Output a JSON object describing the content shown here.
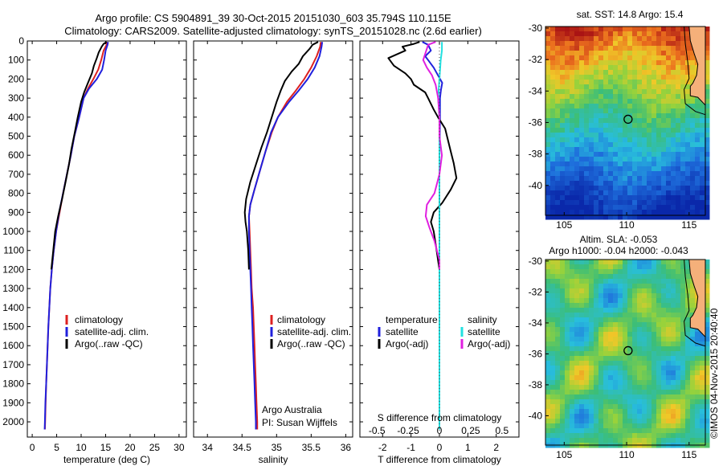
{
  "header": {
    "line1": "Argo profile: CS 5904891_39 30-Oct-2015 20151030_603 35.794S 110.115E",
    "line2": "Climatology: CARS2009. Satellite-adjusted climatology: synTS_20151028.nc (2.6d earlier)"
  },
  "colors": {
    "climatology": "#dd2020",
    "satellite": "#2020dd",
    "argo": "#000000",
    "sal_satellite": "#22e0e0",
    "sal_argo": "#e020e0",
    "land": "#f5b07a"
  },
  "chart_data": [
    {
      "type": "line",
      "name": "temperature-profile",
      "xlabel": "temperature (deg C)",
      "ylabel": "",
      "xlim": [
        -1,
        31.5
      ],
      "ylim": [
        2080,
        0
      ],
      "xticks": [
        0,
        5,
        10,
        15,
        20,
        25,
        30
      ],
      "yticks": [
        0,
        100,
        200,
        300,
        400,
        500,
        600,
        700,
        800,
        900,
        1000,
        1100,
        1200,
        1300,
        1400,
        1500,
        1600,
        1700,
        1800,
        1900,
        2000
      ],
      "legend": [
        "climatology",
        "satellite-adj. clim.",
        "Argo(..raw -QC)"
      ],
      "series": [
        {
          "name": "climatology",
          "points": [
            [
              15.3,
              5
            ],
            [
              15.2,
              20
            ],
            [
              14.6,
              50
            ],
            [
              14.1,
              100
            ],
            [
              13.5,
              150
            ],
            [
              12.5,
              200
            ],
            [
              11.4,
              250
            ],
            [
              10.5,
              300
            ],
            [
              9.6,
              400
            ],
            [
              8.6,
              500
            ],
            [
              7.9,
              600
            ],
            [
              7.1,
              700
            ],
            [
              6.3,
              800
            ],
            [
              5.6,
              900
            ],
            [
              4.9,
              1000
            ],
            [
              4.4,
              1100
            ],
            [
              4.0,
              1200
            ],
            [
              3.7,
              1300
            ],
            [
              3.5,
              1400
            ],
            [
              3.3,
              1500
            ],
            [
              3.15,
              1600
            ],
            [
              3.0,
              1700
            ],
            [
              2.85,
              1800
            ],
            [
              2.75,
              1900
            ],
            [
              2.65,
              2000
            ],
            [
              2.6,
              2040
            ]
          ]
        },
        {
          "name": "satellite-adj. clim.",
          "points": [
            [
              15.5,
              5
            ],
            [
              15.4,
              20
            ],
            [
              15.0,
              50
            ],
            [
              14.7,
              100
            ],
            [
              14.3,
              150
            ],
            [
              13.2,
              200
            ],
            [
              11.6,
              250
            ],
            [
              10.5,
              300
            ],
            [
              9.6,
              400
            ],
            [
              8.6,
              500
            ],
            [
              7.9,
              600
            ],
            [
              7.1,
              700
            ],
            [
              6.3,
              800
            ],
            [
              5.5,
              900
            ],
            [
              4.9,
              1000
            ],
            [
              4.4,
              1100
            ],
            [
              4.0,
              1200
            ],
            [
              3.7,
              1300
            ],
            [
              3.5,
              1400
            ],
            [
              3.3,
              1500
            ],
            [
              3.15,
              1600
            ],
            [
              3.0,
              1700
            ],
            [
              2.85,
              1800
            ],
            [
              2.7,
              1900
            ],
            [
              2.6,
              2000
            ],
            [
              2.55,
              2040
            ]
          ]
        },
        {
          "name": "Argo(..raw -QC)",
          "points": [
            [
              15.2,
              5
            ],
            [
              14.6,
              15
            ],
            [
              14.2,
              30
            ],
            [
              13.6,
              60
            ],
            [
              13.2,
              90
            ],
            [
              12.6,
              130
            ],
            [
              12.2,
              170
            ],
            [
              11.4,
              220
            ],
            [
              10.6,
              270
            ],
            [
              10.0,
              320
            ],
            [
              9.3,
              400
            ],
            [
              8.7,
              480
            ],
            [
              8.0,
              570
            ],
            [
              7.5,
              650
            ],
            [
              6.9,
              730
            ],
            [
              6.1,
              830
            ],
            [
              5.3,
              920
            ],
            [
              4.7,
              1000
            ],
            [
              4.3,
              1100
            ],
            [
              3.9,
              1200
            ]
          ]
        }
      ]
    },
    {
      "type": "line",
      "name": "salinity-profile",
      "xlabel": "salinity",
      "ylabel": "",
      "xlim": [
        33.8,
        36.1
      ],
      "ylim": [
        2080,
        0
      ],
      "xticks": [
        34,
        34.5,
        35,
        35.5,
        36
      ],
      "legend": [
        "climatology",
        "satellite-adj. clim.",
        "Argo(..raw -QC)"
      ],
      "annotation": [
        "Argo Australia",
        "PI: Susan Wijffels"
      ],
      "series": [
        {
          "name": "climatology",
          "points": [
            [
              35.64,
              5
            ],
            [
              35.63,
              30
            ],
            [
              35.58,
              80
            ],
            [
              35.5,
              140
            ],
            [
              35.4,
              200
            ],
            [
              35.28,
              260
            ],
            [
              35.15,
              320
            ],
            [
              35.02,
              400
            ],
            [
              34.93,
              480
            ],
            [
              34.84,
              580
            ],
            [
              34.76,
              680
            ],
            [
              34.68,
              780
            ],
            [
              34.62,
              860
            ],
            [
              34.6,
              920
            ],
            [
              34.61,
              1000
            ],
            [
              34.62,
              1100
            ],
            [
              34.63,
              1200
            ],
            [
              34.64,
              1300
            ],
            [
              34.66,
              1400
            ],
            [
              34.67,
              1500
            ],
            [
              34.68,
              1600
            ],
            [
              34.69,
              1700
            ],
            [
              34.7,
              1800
            ],
            [
              34.71,
              1900
            ],
            [
              34.72,
              2000
            ],
            [
              34.72,
              2040
            ]
          ]
        },
        {
          "name": "satellite-adj. clim.",
          "points": [
            [
              35.66,
              5
            ],
            [
              35.65,
              30
            ],
            [
              35.62,
              80
            ],
            [
              35.55,
              140
            ],
            [
              35.45,
              200
            ],
            [
              35.32,
              260
            ],
            [
              35.18,
              320
            ],
            [
              35.02,
              400
            ],
            [
              34.92,
              480
            ],
            [
              34.84,
              580
            ],
            [
              34.76,
              680
            ],
            [
              34.68,
              780
            ],
            [
              34.62,
              860
            ],
            [
              34.6,
              920
            ],
            [
              34.6,
              1000
            ],
            [
              34.61,
              1100
            ],
            [
              34.62,
              1200
            ],
            [
              34.63,
              1300
            ],
            [
              34.64,
              1400
            ],
            [
              34.65,
              1500
            ],
            [
              34.66,
              1600
            ],
            [
              34.67,
              1700
            ],
            [
              34.68,
              1800
            ],
            [
              34.69,
              1900
            ],
            [
              34.7,
              2000
            ],
            [
              34.7,
              2040
            ]
          ]
        },
        {
          "name": "Argo(..raw -QC)",
          "points": [
            [
              35.6,
              5
            ],
            [
              35.52,
              20
            ],
            [
              35.48,
              40
            ],
            [
              35.38,
              80
            ],
            [
              35.32,
              120
            ],
            [
              35.22,
              160
            ],
            [
              35.12,
              210
            ],
            [
              35.06,
              260
            ],
            [
              35.0,
              320
            ],
            [
              34.93,
              400
            ],
            [
              34.86,
              480
            ],
            [
              34.78,
              560
            ],
            [
              34.7,
              650
            ],
            [
              34.62,
              740
            ],
            [
              34.56,
              830
            ],
            [
              34.54,
              900
            ],
            [
              34.55,
              950
            ],
            [
              34.57,
              1000
            ],
            [
              34.59,
              1100
            ],
            [
              34.6,
              1200
            ]
          ]
        }
      ]
    },
    {
      "type": "line",
      "name": "difference-profile",
      "xlabel": "T difference from climatology",
      "xlabel_top": "S difference from climatology",
      "xlim": [
        -2.8,
        2.8
      ],
      "ylim": [
        2080,
        0
      ],
      "xticks": [
        -2,
        -1,
        0,
        1,
        2
      ],
      "xticks_s": [
        "-0.5",
        "-0.25",
        "0",
        "0.25",
        "0.5"
      ],
      "xticks_s_values": [
        -0.5,
        -0.25,
        0,
        0.25,
        0.5
      ],
      "legend_temperature": {
        "header": "temperature",
        "items": [
          "satellite",
          "Argo(-adj)"
        ]
      },
      "legend_salinity": {
        "header": "salinity",
        "items": [
          "satellite",
          "Argo(-adj)"
        ]
      },
      "series": [
        {
          "name": "temperature satellite",
          "points": [
            [
              -0.6,
              5
            ],
            [
              -0.4,
              20
            ],
            [
              -0.3,
              50
            ],
            [
              -0.5,
              80
            ],
            [
              -0.4,
              100
            ],
            [
              -0.2,
              140
            ],
            [
              -0.05,
              180
            ],
            [
              0.1,
              220
            ],
            [
              0.05,
              260
            ],
            [
              0.02,
              300
            ],
            [
              0.02,
              400
            ],
            [
              0.0,
              600
            ],
            [
              0.0,
              900
            ],
            [
              0.0,
              1200
            ],
            [
              0.0,
              1500
            ],
            [
              0.0,
              1800
            ],
            [
              0.0,
              2040
            ]
          ]
        },
        {
          "name": "temperature Argo(-adj)",
          "points": [
            [
              -0.7,
              5
            ],
            [
              -0.9,
              15
            ],
            [
              -1.3,
              30
            ],
            [
              -1.2,
              50
            ],
            [
              -1.8,
              90
            ],
            [
              -1.6,
              130
            ],
            [
              -1.2,
              170
            ],
            [
              -1.0,
              200
            ],
            [
              -0.9,
              230
            ],
            [
              -0.5,
              270
            ],
            [
              -0.4,
              300
            ],
            [
              -0.2,
              360
            ],
            [
              -0.05,
              400
            ],
            [
              0.2,
              460
            ],
            [
              0.3,
              520
            ],
            [
              0.4,
              580
            ],
            [
              0.5,
              640
            ],
            [
              0.6,
              720
            ],
            [
              0.4,
              780
            ],
            [
              0.1,
              850
            ],
            [
              -0.2,
              900
            ],
            [
              -0.3,
              950
            ],
            [
              -0.2,
              1000
            ],
            [
              -0.1,
              1100
            ],
            [
              0.0,
              1200
            ]
          ]
        },
        {
          "name": "salinity satellite",
          "points": [
            [
              0.02,
              5
            ],
            [
              0.02,
              50
            ],
            [
              0.01,
              100
            ],
            [
              0.0,
              200
            ],
            [
              -0.01,
              300
            ],
            [
              0.0,
              400
            ],
            [
              0.0,
              600
            ],
            [
              0.0,
              900
            ],
            [
              0.0,
              1200
            ],
            [
              0.0,
              1500
            ],
            [
              0.0,
              1800
            ],
            [
              0.0,
              2040
            ]
          ]
        },
        {
          "name": "salinity Argo(-adj)",
          "points": [
            [
              -0.03,
              5
            ],
            [
              -0.09,
              20
            ],
            [
              -0.11,
              60
            ],
            [
              -0.13,
              100
            ],
            [
              -0.1,
              140
            ],
            [
              -0.06,
              180
            ],
            [
              -0.03,
              230
            ],
            [
              -0.01,
              300
            ],
            [
              0.0,
              400
            ],
            [
              0.0,
              500
            ],
            [
              0.02,
              600
            ],
            [
              0.0,
              700
            ],
            [
              -0.04,
              800
            ],
            [
              -0.1,
              860
            ],
            [
              -0.11,
              920
            ],
            [
              -0.08,
              980
            ],
            [
              -0.04,
              1050
            ],
            [
              0.0,
              1150
            ],
            [
              0.0,
              1200
            ]
          ]
        }
      ]
    },
    {
      "type": "heatmap",
      "name": "sst-map",
      "title": "sat. SST: 14.8  Argo: 15.4",
      "xlim": [
        103.5,
        116.3
      ],
      "ylim": [
        -41.9,
        -29.9
      ],
      "xticks": [
        105,
        110,
        115
      ],
      "yticks": [
        -30,
        -32,
        -34,
        -36,
        -38,
        -40
      ],
      "ytick_labels": [
        "-30",
        "-32",
        "-34",
        "-36",
        "-38",
        "-40"
      ],
      "marker": {
        "lon": 110.115,
        "lat": -35.794
      }
    },
    {
      "type": "heatmap",
      "name": "sla-map",
      "title": "Altim. SLA: -0.053",
      "subtitle": "Argo h1000: -0.04 h2000: -0.043",
      "xlim": [
        103.5,
        116.3
      ],
      "ylim": [
        -41.9,
        -29.9
      ],
      "xticks": [
        105,
        110,
        115
      ],
      "yticks": [
        -30,
        -32,
        -34,
        -36,
        -38,
        -40
      ],
      "ytick_labels": [
        "-30",
        "-32",
        "-34",
        "-36",
        "-38",
        "-40"
      ],
      "marker": {
        "lon": 110.115,
        "lat": -35.794
      }
    }
  ],
  "credit": "©IMOS 04-Nov-2015 20:40:40"
}
